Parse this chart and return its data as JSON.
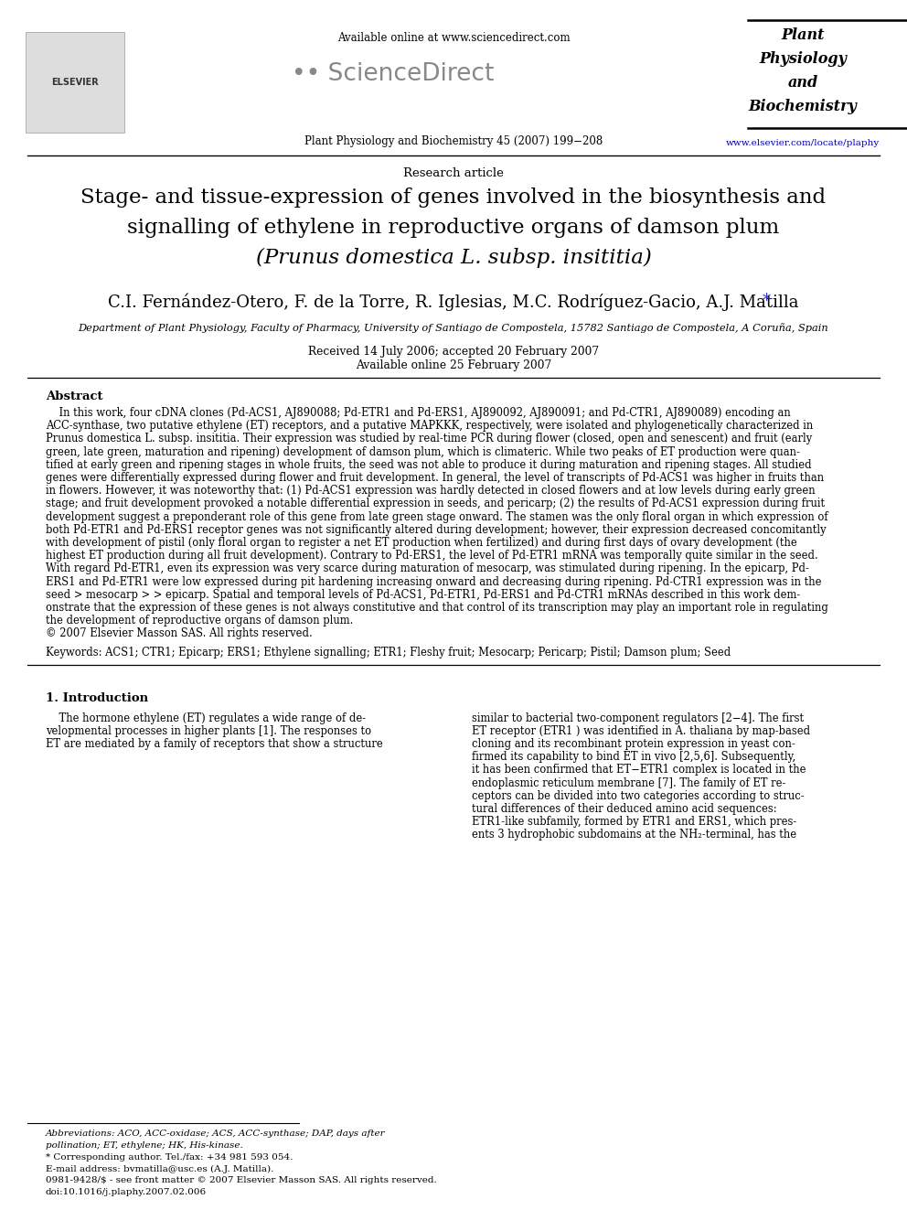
{
  "bg_color": "#ffffff",
  "header": {
    "available_online": "Available online at www.sciencedirect.com",
    "journal_line": "Plant Physiology and Biochemistry 45 (2007) 199−208",
    "journal_name_lines": [
      "Plant",
      "Physiology",
      "and",
      "Biochemistry"
    ],
    "url": "www.elsevier.com/locate/plaphy"
  },
  "article_type": "Research article",
  "title_lines": [
    "Stage- and tissue-expression of genes involved in the biosynthesis and",
    "signalling of ethylene in reproductive organs of damson plum",
    "(Prunus domestica L. subsp. insititia)"
  ],
  "authors": "C.I. Fernández-Otero, F. de la Torre, R. Iglesias, M.C. Rodríguez-Gacio, A.J. Matilla",
  "affiliation": "Department of Plant Physiology, Faculty of Pharmacy, University of Santiago de Compostela, 15782 Santiago de Compostela, A Coruña, Spain",
  "dates": "Received 14 July 2006; accepted 20 February 2007",
  "available": "Available online 25 February 2007",
  "abstract_title": "Abstract",
  "keywords": "Keywords: ACS1; CTR1; Epicarp; ERS1; Ethylene signalling; ETR1; Fleshy fruit; Mesocarp; Pericarp; Pistil; Damson plum; Seed",
  "intro_title": "1. Introduction",
  "abs_lines": [
    "    In this work, four cDNA clones (Pd-ACS1, AJ890088; Pd-ETR1 and Pd-ERS1, AJ890092, AJ890091; and Pd-CTR1, AJ890089) encoding an",
    "ACC-synthase, two putative ethylene (ET) receptors, and a putative MAPKKK, respectively, were isolated and phylogenetically characterized in",
    "Prunus domestica L. subsp. insititia. Their expression was studied by real-time PCR during flower (closed, open and senescent) and fruit (early",
    "green, late green, maturation and ripening) development of damson plum, which is climateric. While two peaks of ET production were quan-",
    "tified at early green and ripening stages in whole fruits, the seed was not able to produce it during maturation and ripening stages. All studied",
    "genes were differentially expressed during flower and fruit development. In general, the level of transcripts of Pd-ACS1 was higher in fruits than",
    "in flowers. However, it was noteworthy that: (1) Pd-ACS1 expression was hardly detected in closed flowers and at low levels during early green",
    "stage; and fruit development provoked a notable differential expression in seeds, and pericarp; (2) the results of Pd-ACS1 expression during fruit",
    "development suggest a preponderant role of this gene from late green stage onward. The stamen was the only floral organ in which expression of",
    "both Pd-ETR1 and Pd-ERS1 receptor genes was not significantly altered during development; however, their expression decreased concomitantly",
    "with development of pistil (only floral organ to register a net ET production when fertilized) and during first days of ovary development (the",
    "highest ET production during all fruit development). Contrary to Pd-ERS1, the level of Pd-ETR1 mRNA was temporally quite similar in the seed.",
    "With regard Pd-ETR1, even its expression was very scarce during maturation of mesocarp, was stimulated during ripening. In the epicarp, Pd-",
    "ERS1 and Pd-ETR1 were low expressed during pit hardening increasing onward and decreasing during ripening. Pd-CTR1 expression was in the",
    "seed > mesocarp > > epicarp. Spatial and temporal levels of Pd-ACS1, Pd-ETR1, Pd-ERS1 and Pd-CTR1 mRNAs described in this work dem-",
    "onstrate that the expression of these genes is not always constitutive and that control of its transcription may play an important role in regulating",
    "the development of reproductive organs of damson plum.",
    "© 2007 Elsevier Masson SAS. All rights reserved."
  ],
  "intro_col1_lines": [
    "    The hormone ethylene (ET) regulates a wide range of de-",
    "velopmental processes in higher plants [1]. The responses to",
    "ET are mediated by a family of receptors that show a structure"
  ],
  "intro_col2_lines": [
    "similar to bacterial two-component regulators [2−4]. The first",
    "ET receptor (ETR1 ) was identified in A. thaliana by map-based",
    "cloning and its recombinant protein expression in yeast con-",
    "firmed its capability to bind ET in vivo [2,5,6]. Subsequently,",
    "it has been confirmed that ET−ETR1 complex is located in the",
    "endoplasmic reticulum membrane [7]. The family of ET re-",
    "ceptors can be divided into two categories according to struc-",
    "tural differences of their deduced amino acid sequences:",
    "ETR1-like subfamily, formed by ETR1 and ERS1, which pres-",
    "ents 3 hydrophobic subdomains at the NH₂-terminal, has the"
  ],
  "fn_lines": [
    "Abbreviations: ACO, ACC-oxidase; ACS, ACC-synthase; DAP, days after",
    "pollination; ET, ethylene; HK, His-kinase.",
    "* Corresponding author. Tel./fax: +34 981 593 054.",
    "E-mail address: bvmatilla@usc.es (A.J. Matilla)."
  ],
  "doi_lines": [
    "0981-9428/$ - see front matter © 2007 Elsevier Masson SAS. All rights reserved.",
    "doi:10.1016/j.plaphy.2007.02.006"
  ]
}
